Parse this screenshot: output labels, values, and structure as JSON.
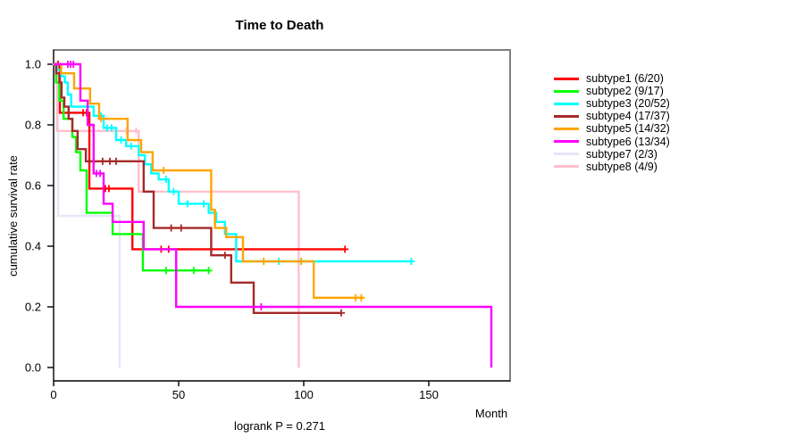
{
  "page": {
    "background": "#ffffff"
  },
  "chart_data": {
    "type": "line",
    "chart_kind": "kaplan_meier_step",
    "title": "Time to Death",
    "xlabel": "Month",
    "ylabel": "cumulative survival rate",
    "footnote": "logrank P = 0.271",
    "x_ticks": [
      "0",
      "50",
      "100",
      "150"
    ],
    "y_ticks": [
      "0.0",
      "0.2",
      "0.4",
      "0.6",
      "0.8",
      "1.0"
    ],
    "xlim": [
      0,
      182.5
    ],
    "ylim": [
      0,
      1.05
    ],
    "grid": false,
    "legend_position": "right",
    "series": [
      {
        "name": "subtype1",
        "label": "subtype1 (6/20)",
        "events": "6/20",
        "color": "#FF0000",
        "steps": [
          [
            0,
            1.0
          ],
          [
            2.5,
            0.84
          ],
          [
            14.3,
            0.59
          ],
          [
            31.5,
            0.39
          ]
        ],
        "censors": [
          [
            1.8,
            1.0
          ],
          [
            11.8,
            0.84
          ],
          [
            13.2,
            0.84
          ],
          [
            20.7,
            0.59
          ],
          [
            22.1,
            0.59
          ],
          [
            43,
            0.39
          ],
          [
            46,
            0.39
          ],
          [
            116.5,
            0.39
          ]
        ],
        "end_month": 116.5,
        "ends_at_zero": false
      },
      {
        "name": "subtype2",
        "label": "subtype2 (9/17)",
        "events": "9/17",
        "color": "#00FF00",
        "steps": [
          [
            0,
            1.0
          ],
          [
            1,
            0.94
          ],
          [
            2.3,
            0.88
          ],
          [
            4,
            0.82
          ],
          [
            7.5,
            0.76
          ],
          [
            9,
            0.71
          ],
          [
            10.7,
            0.65
          ],
          [
            13.2,
            0.51
          ],
          [
            23.6,
            0.44
          ],
          [
            35.7,
            0.32
          ]
        ],
        "censors": [
          [
            45,
            0.32
          ],
          [
            56,
            0.32
          ],
          [
            62,
            0.32
          ]
        ],
        "end_month": 62,
        "ends_at_zero": false
      },
      {
        "name": "subtype3",
        "label": "subtype3 (20/52)",
        "events": "20/52",
        "color": "#00FFFF",
        "steps": [
          [
            0,
            1.0
          ],
          [
            1.5,
            0.98
          ],
          [
            3,
            0.96
          ],
          [
            4.5,
            0.94
          ],
          [
            5.7,
            0.9
          ],
          [
            7,
            0.86
          ],
          [
            16,
            0.83
          ],
          [
            20,
            0.79
          ],
          [
            25,
            0.75
          ],
          [
            29,
            0.73
          ],
          [
            34,
            0.7
          ],
          [
            36.5,
            0.67
          ],
          [
            39,
            0.64
          ],
          [
            42,
            0.62
          ],
          [
            46,
            0.58
          ],
          [
            50,
            0.54
          ],
          [
            62,
            0.51
          ],
          [
            65,
            0.48
          ],
          [
            68.5,
            0.44
          ],
          [
            73,
            0.35
          ]
        ],
        "censors": [
          [
            19,
            0.83
          ],
          [
            21.4,
            0.79
          ],
          [
            23.2,
            0.79
          ],
          [
            27,
            0.75
          ],
          [
            31,
            0.73
          ],
          [
            45,
            0.62
          ],
          [
            48,
            0.58
          ],
          [
            53.6,
            0.54
          ],
          [
            60,
            0.54
          ],
          [
            90,
            0.35
          ],
          [
            99,
            0.35
          ],
          [
            143,
            0.35
          ]
        ],
        "end_month": 143,
        "ends_at_zero": false
      },
      {
        "name": "subtype4",
        "label": "subtype4 (17/37)",
        "events": "17/37",
        "color": "#A52A2A",
        "steps": [
          [
            0,
            1.0
          ],
          [
            1,
            0.97
          ],
          [
            2.3,
            0.94
          ],
          [
            3.2,
            0.89
          ],
          [
            4.3,
            0.86
          ],
          [
            6,
            0.82
          ],
          [
            7.5,
            0.78
          ],
          [
            9.6,
            0.72
          ],
          [
            12.9,
            0.68
          ],
          [
            36,
            0.58
          ],
          [
            40,
            0.46
          ],
          [
            63,
            0.37
          ],
          [
            71,
            0.28
          ],
          [
            80,
            0.18
          ]
        ],
        "censors": [
          [
            19.6,
            0.68
          ],
          [
            22.5,
            0.68
          ],
          [
            25,
            0.68
          ],
          [
            47,
            0.46
          ],
          [
            51,
            0.46
          ],
          [
            68.5,
            0.37
          ],
          [
            115,
            0.18
          ]
        ],
        "end_month": 115,
        "ends_at_zero": false
      },
      {
        "name": "subtype5",
        "label": "subtype5 (14/32)",
        "events": "14/32",
        "color": "#FFA500",
        "steps": [
          [
            0,
            1.0
          ],
          [
            3,
            0.97
          ],
          [
            8.2,
            0.92
          ],
          [
            14.6,
            0.87
          ],
          [
            18.2,
            0.82
          ],
          [
            29.6,
            0.75
          ],
          [
            35,
            0.71
          ],
          [
            39.6,
            0.65
          ],
          [
            63,
            0.52
          ],
          [
            64.5,
            0.46
          ],
          [
            69,
            0.43
          ],
          [
            75.7,
            0.35
          ],
          [
            104,
            0.23
          ]
        ],
        "censors": [
          [
            19,
            0.82
          ],
          [
            44,
            0.65
          ],
          [
            84,
            0.35
          ],
          [
            99,
            0.35
          ],
          [
            120.7,
            0.23
          ],
          [
            123,
            0.23
          ]
        ],
        "end_month": 124,
        "ends_at_zero": false
      },
      {
        "name": "subtype6",
        "label": "subtype6 (13/34)",
        "events": "13/34",
        "color": "#FF00FF",
        "steps": [
          [
            0,
            1.0
          ],
          [
            10.7,
            0.88
          ],
          [
            13.6,
            0.8
          ],
          [
            16,
            0.64
          ],
          [
            20,
            0.54
          ],
          [
            23.6,
            0.48
          ],
          [
            36,
            0.39
          ],
          [
            49,
            0.2
          ],
          [
            175,
            0
          ]
        ],
        "censors": [
          [
            5.7,
            1.0
          ],
          [
            6.8,
            1.0
          ],
          [
            7.9,
            1.0
          ],
          [
            17.1,
            0.64
          ],
          [
            18.6,
            0.64
          ],
          [
            83,
            0.2
          ]
        ],
        "end_month": 175,
        "ends_at_zero": true
      },
      {
        "name": "subtype7",
        "label": "subtype7 (2/3)",
        "events": "2/3",
        "color": "#E6E6FA",
        "steps": [
          [
            0,
            1.0
          ],
          [
            1.8,
            0.5
          ],
          [
            26.4,
            0
          ]
        ],
        "censors": [
          [
            1,
            1.0
          ]
        ],
        "end_month": 26.4,
        "ends_at_zero": true
      },
      {
        "name": "subtype8",
        "label": "subtype8 (4/9)",
        "events": "4/9",
        "color": "#FFC0CB",
        "steps": [
          [
            0,
            1.0
          ],
          [
            1.4,
            0.78
          ],
          [
            34,
            0.58
          ],
          [
            98,
            0
          ]
        ],
        "censors": [
          [
            25,
            0.78
          ],
          [
            29,
            0.78
          ],
          [
            33,
            0.78
          ]
        ],
        "end_month": 98,
        "ends_at_zero": true
      }
    ]
  }
}
